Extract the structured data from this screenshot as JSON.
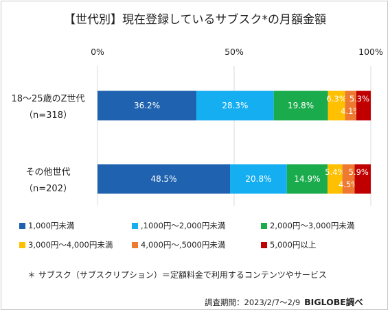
{
  "title": "【世代別】現在登録しているサブスク*の月額金額",
  "chart_data": {
    "type": "bar",
    "orientation": "horizontal",
    "stacked": true,
    "xlim": [
      0,
      100
    ],
    "x_ticks": [
      "0%",
      "50%",
      "100%"
    ],
    "categories": [
      {
        "name": "18〜25歳のZ世代",
        "n": "（n=318）"
      },
      {
        "name": "その他世代",
        "n": "（n=202）"
      }
    ],
    "series": [
      {
        "name": "1,000円未満",
        "color": "#1f62b0",
        "values": [
          36.2,
          48.5
        ],
        "labels": [
          "36.2%",
          "48.5%"
        ]
      },
      {
        "name": ",1000円〜2,000円未満",
        "color": "#15aef0",
        "values": [
          28.3,
          20.8
        ],
        "labels": [
          "28.3%",
          "20.8%"
        ]
      },
      {
        "name": "2,000円〜3,000円未満",
        "color": "#1aab4c",
        "values": [
          19.8,
          14.9
        ],
        "labels": [
          "19.8%",
          "14.9%"
        ]
      },
      {
        "name": "3,000円〜4,000円未満",
        "color": "#ffc000",
        "values": [
          6.3,
          5.4
        ],
        "labels": [
          "6.3%",
          "5.4%"
        ]
      },
      {
        "name": "4,000円〜,5000円未満",
        "color": "#ee7a31",
        "values": [
          4.1,
          4.5
        ],
        "labels": [
          "4.1%",
          "4.5%"
        ]
      },
      {
        "name": "5,000円以上",
        "color": "#c00000",
        "values": [
          5.3,
          5.9
        ],
        "labels": [
          "5.3%",
          "5.9%"
        ]
      }
    ],
    "legend_position": "bottom",
    "grid": true
  },
  "footnote": "＊ サブスク（サブスクリプション）＝定額料金で利用するコンテンツやサービス",
  "survey_period": "調査期間：2023/2/7〜2/9",
  "brand": "BIGLOBE調べ"
}
